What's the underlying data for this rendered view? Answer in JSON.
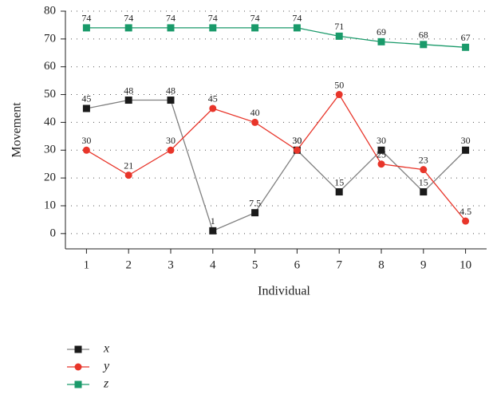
{
  "chart_data": {
    "type": "line",
    "y_label": "Movement",
    "x_label": "Individual",
    "x": [
      1,
      2,
      3,
      4,
      5,
      6,
      7,
      8,
      9,
      10
    ],
    "series": [
      {
        "name": "x",
        "color": "#1a1a1a",
        "line_color": "#808080",
        "marker": "square",
        "values": [
          45,
          48,
          48,
          1,
          7.5,
          30,
          15,
          30,
          15,
          30
        ]
      },
      {
        "name": "y",
        "color": "#e8352a",
        "line_color": "#e8352a",
        "marker": "circle",
        "values": [
          30,
          21,
          30,
          45,
          40,
          30,
          50,
          25,
          23,
          4.5
        ]
      },
      {
        "name": "z",
        "color": "#1a9a6a",
        "line_color": "#1a9a6a",
        "marker": "square",
        "values": [
          74,
          74,
          74,
          74,
          74,
          74,
          71,
          69,
          68,
          67
        ]
      }
    ],
    "xlim": [
      0.5,
      10.5
    ],
    "xticks": [
      1,
      2,
      3,
      4,
      5,
      6,
      7,
      8,
      9,
      10
    ],
    "ylim": [
      -5.5,
      80
    ],
    "yticks": [
      0,
      10,
      20,
      30,
      40,
      50,
      60,
      70,
      80
    ],
    "grid": true,
    "legend": "bottom-left"
  }
}
